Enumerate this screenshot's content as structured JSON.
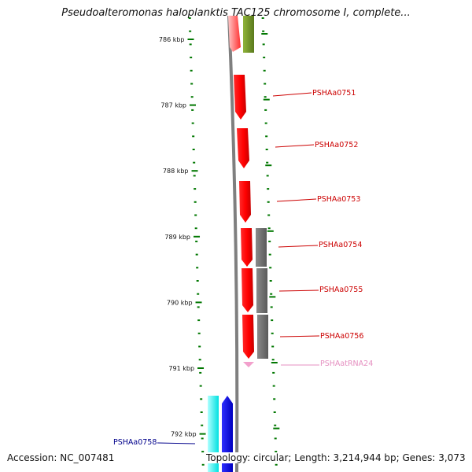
{
  "title": "Pseudoalteromonas haloplanktis TAC125 chromosome I, complete...",
  "ticks": [
    {
      "label": "786 kbp",
      "kbp": 786
    },
    {
      "label": "787 kbp",
      "kbp": 787
    },
    {
      "label": "788 kbp",
      "kbp": 788
    },
    {
      "label": "789 kbp",
      "kbp": 789
    },
    {
      "label": "790 kbp",
      "kbp": 790
    },
    {
      "label": "791 kbp",
      "kbp": 791
    },
    {
      "label": "792 kbp",
      "kbp": 792
    }
  ],
  "genes": [
    {
      "id": "PSHAa0751",
      "color": "#cc0000"
    },
    {
      "id": "PSHAa0752",
      "color": "#cc0000"
    },
    {
      "id": "PSHAa0753",
      "color": "#cc0000"
    },
    {
      "id": "PSHAa0754",
      "color": "#cc0000"
    },
    {
      "id": "PSHAa0755",
      "color": "#cc0000"
    },
    {
      "id": "PSHAa0756",
      "color": "#cc0000"
    },
    {
      "id": "PSHAatRNA24",
      "color": "#e58fc0"
    },
    {
      "id": "PSHAa0758",
      "color": "#00008b"
    }
  ],
  "colors": {
    "cds": "#ff0000",
    "trna": "#f2a0cc",
    "olive": "#6b8e23",
    "gray_feature": "#666666",
    "cyan": "#00ffff",
    "blue": "#0000ff",
    "backbone": "#7f7f7f",
    "tick": "#007700"
  },
  "footer": {
    "accession": "Accession: NC_007481",
    "info": "Topology: circular; Length: 3,214,944 bp; Genes: 3,073"
  }
}
